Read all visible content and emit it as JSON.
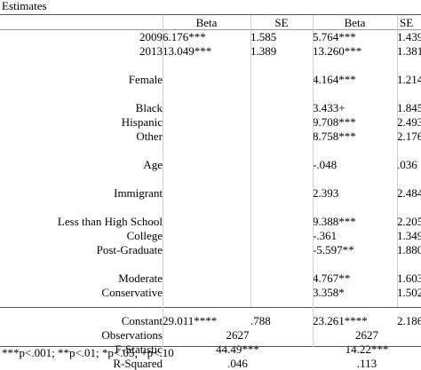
{
  "caption": "Estimates",
  "headers": {
    "beta1": "Beta",
    "se1": "SE",
    "beta2": "Beta",
    "se2": "SE"
  },
  "rows": [
    {
      "label": "2009",
      "b1": "6.176***",
      "s1": "1.585",
      "b2": "5.764***",
      "s2": "1.439"
    },
    {
      "label": "2013",
      "b1": "13.049***",
      "s1": "1.389",
      "b2": "13.260***",
      "s2": "1.381"
    },
    {
      "label": "",
      "b1": "",
      "s1": "",
      "b2": "",
      "s2": ""
    },
    {
      "label": "Female",
      "b1": "",
      "s1": "",
      "b2": "4.164***",
      "s2": "1.214"
    },
    {
      "label": "",
      "b1": "",
      "s1": "",
      "b2": "",
      "s2": ""
    },
    {
      "label": "Black",
      "b1": "",
      "s1": "",
      "b2": "3.433+",
      "s2": "1.845"
    },
    {
      "label": "Hispanic",
      "b1": "",
      "s1": "",
      "b2": "9.708***",
      "s2": "2.493"
    },
    {
      "label": "Other",
      "b1": "",
      "s1": "",
      "b2": "8.758***",
      "s2": "2.176"
    },
    {
      "label": "",
      "b1": "",
      "s1": "",
      "b2": "",
      "s2": ""
    },
    {
      "label": "Age",
      "b1": "",
      "s1": "",
      "b2": "-.048",
      "s2": ".036"
    },
    {
      "label": "",
      "b1": "",
      "s1": "",
      "b2": "",
      "s2": ""
    },
    {
      "label": "Immigrant",
      "b1": "",
      "s1": "",
      "b2": "2.393",
      "s2": "2.484"
    },
    {
      "label": "",
      "b1": "",
      "s1": "",
      "b2": "",
      "s2": ""
    },
    {
      "label": "Less than High School",
      "b1": "",
      "s1": "",
      "b2": "9.388***",
      "s2": "2.205"
    },
    {
      "label": "College",
      "b1": "",
      "s1": "",
      "b2": "-.361",
      "s2": "1.349"
    },
    {
      "label": "Post-Graduate",
      "b1": "",
      "s1": "",
      "b2": "-5.597**",
      "s2": "1.880"
    },
    {
      "label": "",
      "b1": "",
      "s1": "",
      "b2": "",
      "s2": ""
    },
    {
      "label": "Moderate",
      "b1": "",
      "s1": "",
      "b2": "4.767**",
      "s2": "1.603"
    },
    {
      "label": "Conservative",
      "b1": "",
      "s1": "",
      "b2": "3.358*",
      "s2": "1.502"
    },
    {
      "label": "",
      "b1": "",
      "s1": "",
      "b2": "",
      "s2": ""
    },
    {
      "label": "Constant",
      "b1": "29.011****",
      "s1": ".788",
      "b2": "23.261****",
      "s2": "2.186"
    }
  ],
  "stats": [
    {
      "label": "Observations",
      "m1": "2627",
      "m2": "2627"
    },
    {
      "label": "F-Statistic",
      "m1": "44.49***",
      "m2": "14.22***"
    },
    {
      "label": "R-Squared",
      "m1": ".046",
      "m2": ".113"
    }
  ],
  "footnote": "***p<.001; **p<.01; *p<.05; +p<.10"
}
